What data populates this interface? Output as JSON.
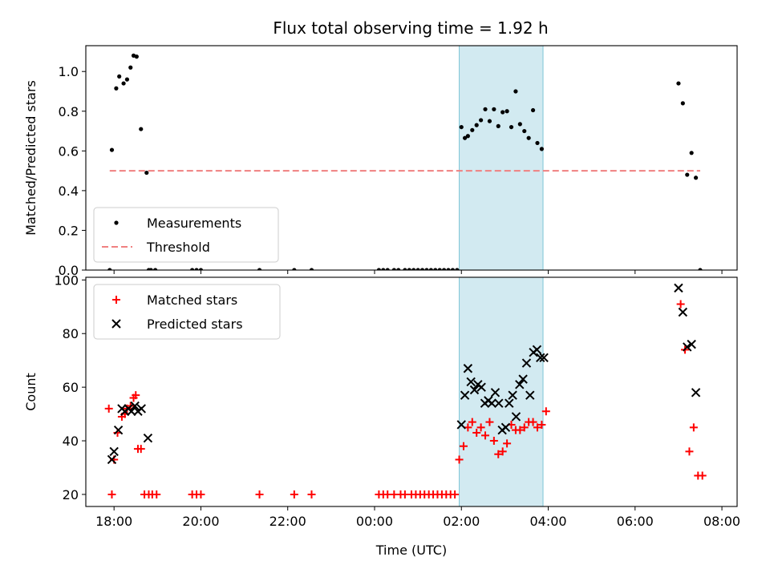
{
  "figure": {
    "title": "Flux total observing time = 1.92 h"
  },
  "chart_data": [
    {
      "type": "scatter",
      "name": "ratio-panel",
      "title": "Flux total observing time = 1.92 h",
      "xlabel": "",
      "ylabel": "Matched/Predicted stars",
      "x_unit": "hours after 18:00 UTC",
      "xlim": [
        -0.65,
        14.35
      ],
      "ylim": [
        0,
        1.13
      ],
      "x_ticks": [
        0,
        2,
        4,
        6,
        8,
        10,
        12,
        14
      ],
      "x_tick_labels": [
        "",
        "",
        "",
        "",
        "",
        "",
        "",
        ""
      ],
      "y_ticks": [
        0,
        0.2,
        0.4,
        0.6,
        0.8,
        1.0
      ],
      "y_tick_labels": [
        "0.0",
        "0.2",
        "0.4",
        "0.6",
        "0.8",
        "1.0"
      ],
      "grid": false,
      "legend": "lower-left",
      "highlight_band": {
        "x": [
          7.95,
          9.88
        ],
        "color": "#add8e6"
      },
      "series": [
        {
          "name": "Measurements",
          "kind": "points",
          "color": "#000000",
          "x": [
            -0.1,
            -0.05,
            0.05,
            0.12,
            0.22,
            0.3,
            0.38,
            0.45,
            0.52,
            0.62,
            0.8,
            0.75,
            0.85,
            0.95,
            1.8,
            1.9,
            2.0,
            3.35,
            4.15,
            4.55,
            6.1,
            6.2,
            6.3,
            6.45,
            6.55,
            6.7,
            6.8,
            6.9,
            7.0,
            7.1,
            7.2,
            7.3,
            7.4,
            7.5,
            7.6,
            7.7,
            7.8,
            7.9,
            8.0,
            8.08,
            8.15,
            8.25,
            8.35,
            8.45,
            8.55,
            8.65,
            8.75,
            8.85,
            8.95,
            9.05,
            9.15,
            9.25,
            9.35,
            9.45,
            9.55,
            9.65,
            9.75,
            9.85,
            13.0,
            13.1,
            13.2,
            13.3,
            13.4,
            13.5
          ],
          "y": [
            0.0,
            0.605,
            0.915,
            0.975,
            0.94,
            0.96,
            1.02,
            1.08,
            1.075,
            0.71,
            0.0,
            0.49,
            0.0,
            0.0,
            0.0,
            0.0,
            0.0,
            0.0,
            0.0,
            0.0,
            0.0,
            0.0,
            0.0,
            0.0,
            0.0,
            0.0,
            0.0,
            0.0,
            0.0,
            0.0,
            0.0,
            0.0,
            0.0,
            0.0,
            0.0,
            0.0,
            0.0,
            0.0,
            0.72,
            0.665,
            0.675,
            0.705,
            0.73,
            0.755,
            0.81,
            0.75,
            0.81,
            0.725,
            0.795,
            0.8,
            0.72,
            0.9,
            0.735,
            0.7,
            0.665,
            0.805,
            0.64,
            0.61,
            0.94,
            0.84,
            0.48,
            0.59,
            0.465,
            0.0
          ]
        },
        {
          "name": "Threshold",
          "kind": "dashed-line",
          "color": "#f08080",
          "x": [
            -0.1,
            13.5
          ],
          "y": [
            0.5,
            0.5
          ]
        }
      ]
    },
    {
      "type": "scatter",
      "name": "count-panel",
      "title": "",
      "xlabel": "Time (UTC)",
      "ylabel": "Count",
      "x_unit": "hours after 18:00 UTC",
      "xlim": [
        -0.65,
        14.35
      ],
      "ylim": [
        15.5,
        101
      ],
      "x_ticks": [
        0,
        2,
        4,
        6,
        8,
        10,
        12,
        14
      ],
      "x_tick_labels": [
        "18:00",
        "20:00",
        "22:00",
        "00:00",
        "02:00",
        "04:00",
        "06:00",
        "08:00"
      ],
      "y_ticks": [
        20,
        40,
        60,
        80,
        100
      ],
      "y_tick_labels": [
        "20",
        "40",
        "60",
        "80",
        "100"
      ],
      "grid": false,
      "legend": "upper-left",
      "highlight_band": {
        "x": [
          7.95,
          9.88
        ],
        "color": "#add8e6"
      },
      "series": [
        {
          "name": "Matched stars",
          "kind": "plus",
          "color": "#ff0000",
          "x": [
            -0.12,
            -0.05,
            0.0,
            0.08,
            0.18,
            0.25,
            0.3,
            0.38,
            0.45,
            0.5,
            0.55,
            0.62,
            0.7,
            0.8,
            0.88,
            0.98,
            1.8,
            1.9,
            2.0,
            3.35,
            4.15,
            4.55,
            6.1,
            6.2,
            6.3,
            6.45,
            6.6,
            6.7,
            6.85,
            6.95,
            7.05,
            7.15,
            7.25,
            7.35,
            7.45,
            7.55,
            7.65,
            7.75,
            7.85,
            7.95,
            8.05,
            8.15,
            8.25,
            8.35,
            8.45,
            8.55,
            8.65,
            8.75,
            8.85,
            8.95,
            9.05,
            9.15,
            9.25,
            9.35,
            9.45,
            9.55,
            9.65,
            9.75,
            9.85,
            9.95,
            13.05,
            13.15,
            13.25,
            13.35,
            13.45,
            13.55
          ],
          "y": [
            52,
            20,
            33,
            43,
            49,
            50,
            52,
            53,
            56,
            57,
            37,
            37,
            20,
            20,
            20,
            20,
            20,
            20,
            20,
            20,
            20,
            20,
            20,
            20,
            20,
            20,
            20,
            20,
            20,
            20,
            20,
            20,
            20,
            20,
            20,
            20,
            20,
            20,
            20,
            33,
            38,
            45,
            47,
            43,
            45,
            42,
            47,
            40,
            35,
            36,
            39,
            46,
            44,
            44,
            45,
            47,
            47,
            45,
            46,
            51,
            91,
            74,
            36,
            45,
            27,
            27
          ]
        },
        {
          "name": "Predicted stars",
          "kind": "cross",
          "color": "#000000",
          "x": [
            -0.05,
            0.0,
            0.1,
            0.18,
            0.25,
            0.33,
            0.4,
            0.48,
            0.55,
            0.63,
            0.78,
            8.0,
            8.08,
            8.15,
            8.22,
            8.3,
            8.38,
            8.46,
            8.54,
            8.62,
            8.7,
            8.78,
            8.86,
            8.94,
            9.02,
            9.1,
            9.18,
            9.26,
            9.34,
            9.42,
            9.5,
            9.58,
            9.66,
            9.74,
            9.82,
            9.9,
            13.0,
            13.1,
            13.2,
            13.3,
            13.4
          ],
          "y": [
            33,
            36,
            44,
            52,
            51,
            52,
            51,
            53,
            51,
            52,
            41,
            46,
            57,
            67,
            62,
            59,
            61,
            60,
            54,
            55,
            54,
            58,
            54,
            44,
            45,
            54,
            57,
            49,
            61,
            63,
            69,
            57,
            73,
            74,
            71,
            71,
            97,
            88,
            75,
            76,
            58
          ]
        }
      ]
    }
  ]
}
